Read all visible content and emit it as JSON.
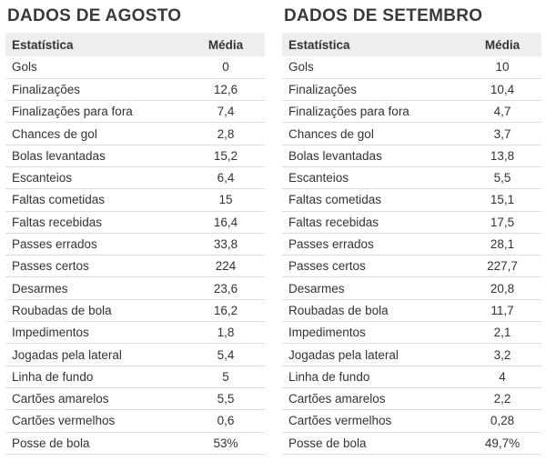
{
  "august": {
    "title": "DADOS DE AGOSTO",
    "header": {
      "stat": "Estatística",
      "value": "Média"
    },
    "rows": [
      {
        "stat": "Gols",
        "value": "0"
      },
      {
        "stat": "Finalizações",
        "value": "12,6"
      },
      {
        "stat": "Finalizações para fora",
        "value": "7,4"
      },
      {
        "stat": "Chances de gol",
        "value": "2,8"
      },
      {
        "stat": "Bolas levantadas",
        "value": "15,2"
      },
      {
        "stat": "Escanteios",
        "value": "6,4"
      },
      {
        "stat": "Faltas cometidas",
        "value": "15"
      },
      {
        "stat": "Faltas recebidas",
        "value": "16,4"
      },
      {
        "stat": "Passes errados",
        "value": "33,8"
      },
      {
        "stat": "Passes certos",
        "value": "224"
      },
      {
        "stat": "Desarmes",
        "value": "23,6"
      },
      {
        "stat": "Roubadas de bola",
        "value": "16,2"
      },
      {
        "stat": "Impedimentos",
        "value": "1,8"
      },
      {
        "stat": "Jogadas pela lateral",
        "value": "5,4"
      },
      {
        "stat": "Linha de fundo",
        "value": "5"
      },
      {
        "stat": "Cartões amarelos",
        "value": "5,5"
      },
      {
        "stat": "Cartões vermelhos",
        "value": "0,6"
      },
      {
        "stat": "Posse de bola",
        "value": "53%"
      }
    ]
  },
  "september": {
    "title": "DADOS DE SETEMBRO",
    "header": {
      "stat": "Estatística",
      "value": "Média"
    },
    "rows": [
      {
        "stat": "Gols",
        "value": "10"
      },
      {
        "stat": "Finalizações",
        "value": "10,4"
      },
      {
        "stat": "Finalizações para fora",
        "value": "4,7"
      },
      {
        "stat": "Chances de gol",
        "value": "3,7"
      },
      {
        "stat": "Bolas levantadas",
        "value": "13,8"
      },
      {
        "stat": "Escanteios",
        "value": "5,5"
      },
      {
        "stat": "Faltas cometidas",
        "value": "15,1"
      },
      {
        "stat": "Faltas recebidas",
        "value": "17,5"
      },
      {
        "stat": "Passes errados",
        "value": "28,1"
      },
      {
        "stat": "Passes certos",
        "value": "227,7"
      },
      {
        "stat": "Desarmes",
        "value": "20,8"
      },
      {
        "stat": "Roubadas de bola",
        "value": "11,7"
      },
      {
        "stat": "Impedimentos",
        "value": "2,1"
      },
      {
        "stat": "Jogadas pela lateral",
        "value": "3,2"
      },
      {
        "stat": "Linha de fundo",
        "value": "4"
      },
      {
        "stat": "Cartões amarelos",
        "value": "2,2"
      },
      {
        "stat": "Cartões vermelhos",
        "value": "0,28"
      },
      {
        "stat": "Posse de bola",
        "value": "49,7%"
      }
    ]
  }
}
